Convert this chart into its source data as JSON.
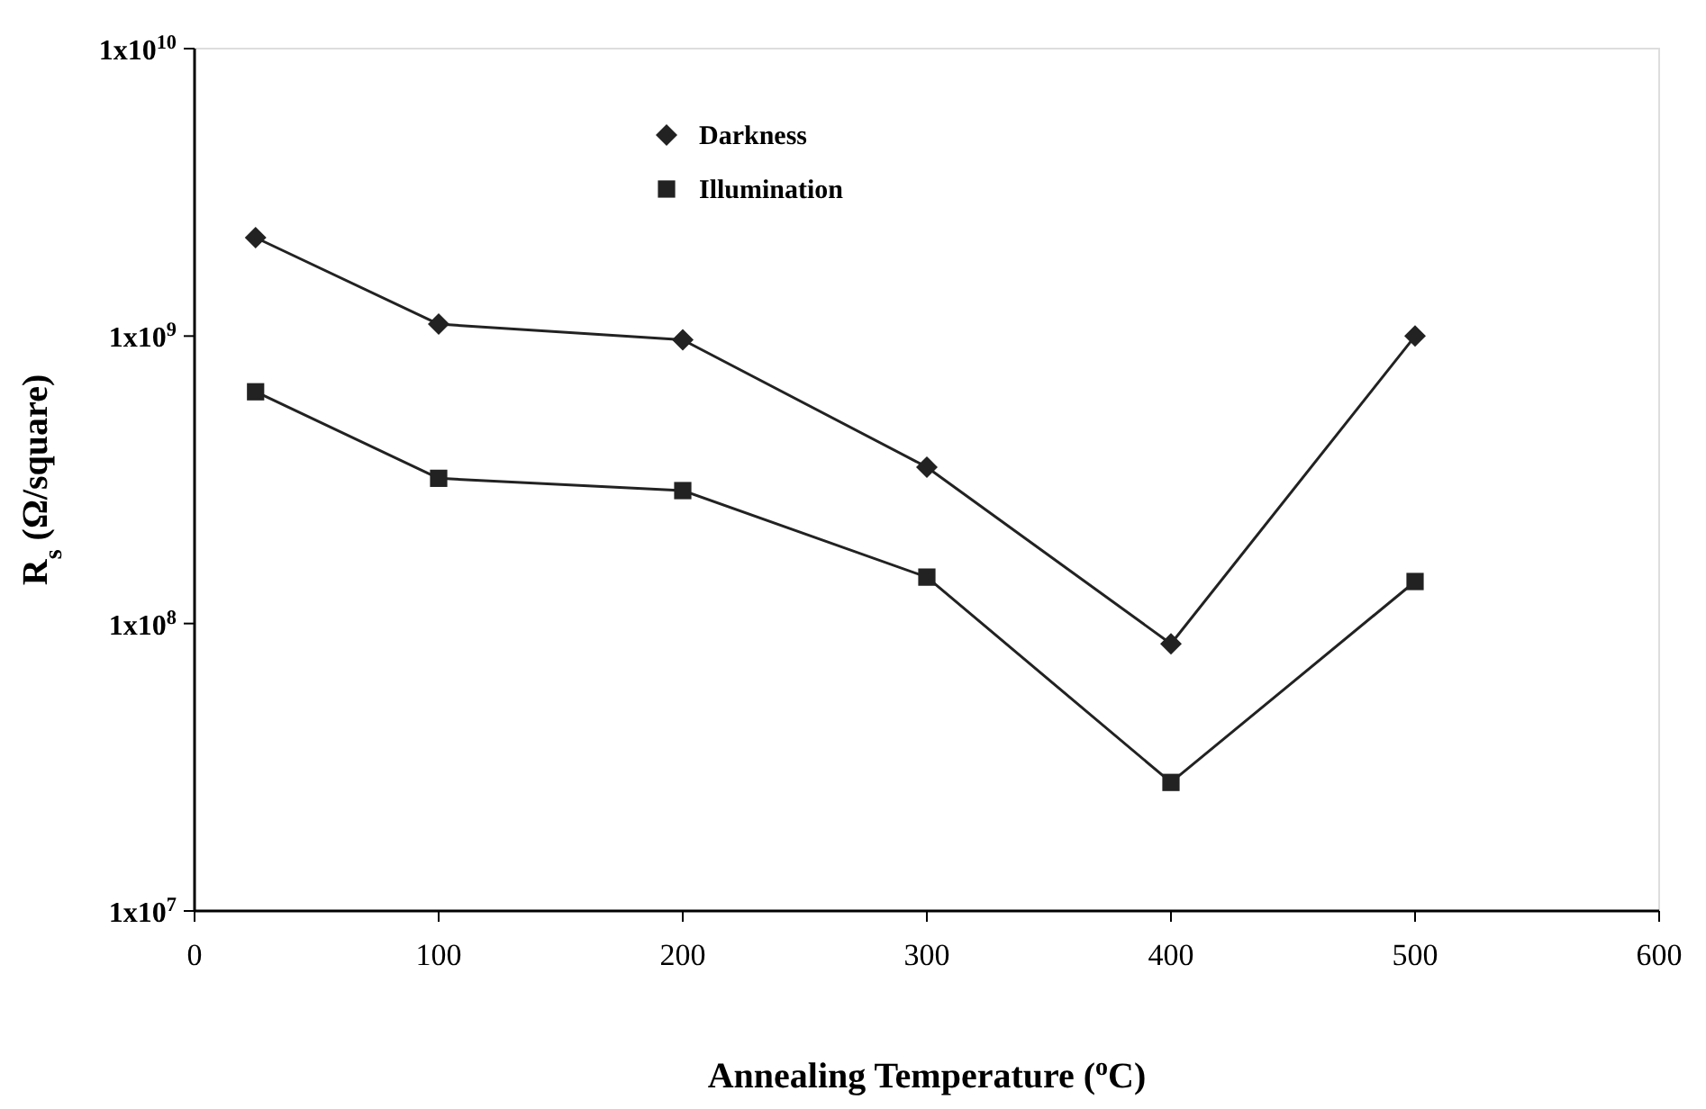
{
  "chart_data": {
    "type": "line",
    "xlabel": "Annealing Temperature ($^{o}$C)",
    "ylabel": "R$_{s}$ (Ω/square)",
    "x": [
      25,
      100,
      200,
      300,
      400,
      500
    ],
    "series": [
      {
        "name": "Darkness",
        "color": "#222222",
        "marker": "diamond",
        "values": [
          2200000000.0,
          1100000000.0,
          970000000.0,
          350000000.0,
          85000000.0,
          1000000000.0
        ]
      },
      {
        "name": "Illumination",
        "color": "#222222",
        "marker": "square",
        "values": [
          640000000.0,
          320000000.0,
          290000000.0,
          145000000.0,
          28000000.0,
          140000000.0
        ]
      }
    ],
    "log": "y",
    "xlim": [
      0,
      600
    ],
    "ylim": [
      10000000.0,
      10000000000.0
    ],
    "xticks": [
      0,
      100,
      200,
      300,
      400,
      500,
      600
    ],
    "yticks": [
      {
        "value": 10000000.0,
        "label": "1x10$^{7}$"
      },
      {
        "value": 100000000.0,
        "label": "1x10$^{8}$"
      },
      {
        "value": 1000000000.0,
        "label": "1x10$^{9}$"
      },
      {
        "value": 10000000000.0,
        "label": "1x10$^{10}$"
      }
    ],
    "grid": false,
    "legend": "top",
    "line_style": "solid"
  }
}
